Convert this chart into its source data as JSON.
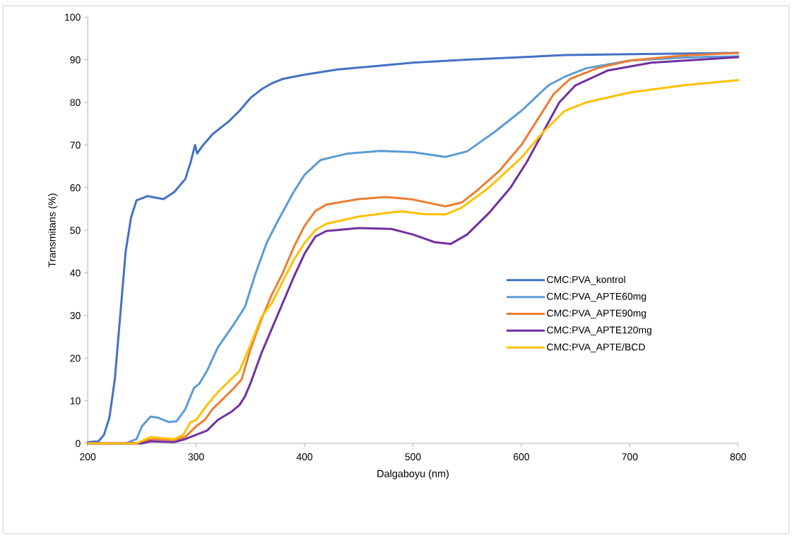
{
  "chart_data": {
    "type": "line",
    "xlabel": "Dalgaboyu (nm)",
    "ylabel": "Transmitans (%)",
    "xlim": [
      200,
      800
    ],
    "xticks": [
      200,
      300,
      400,
      500,
      600,
      700,
      800
    ],
    "ylim": [
      0,
      100
    ],
    "yticks": [
      0,
      10,
      20,
      30,
      40,
      50,
      60,
      70,
      80,
      90,
      100
    ],
    "grid": false,
    "legend": "right",
    "marker": "none",
    "line_style": "solid",
    "series": [
      {
        "name": "CMC:PVA_kontrol",
        "color": "#4472c4",
        "x": [
          200,
          210,
          215,
          220,
          225,
          230,
          235,
          240,
          245,
          255,
          270,
          280,
          290,
          295,
          299,
          301,
          305,
          315,
          330,
          340,
          350,
          360,
          370,
          380,
          400,
          430,
          470,
          500,
          550,
          600,
          640,
          700,
          800
        ],
        "values": [
          0.3,
          0.5,
          2,
          6,
          15,
          30,
          45,
          53,
          57,
          58,
          57.3,
          59,
          62,
          66,
          70,
          68,
          69.5,
          72.5,
          75.5,
          78,
          81,
          83,
          84.5,
          85.5,
          86.5,
          87.7,
          88.6,
          89.3,
          90,
          90.6,
          91.1,
          91.3,
          91.6
        ]
      },
      {
        "name": "CMC:PVA_APTE60mg",
        "color": "#5b9bd5",
        "x": [
          200,
          235,
          245,
          250,
          258,
          265,
          275,
          282,
          290,
          298,
          303,
          310,
          320,
          335,
          345,
          355,
          365,
          375,
          390,
          400,
          415,
          440,
          470,
          500,
          530,
          550,
          575,
          600,
          625,
          640,
          660,
          700,
          750,
          800
        ],
        "values": [
          0,
          0,
          1,
          4,
          6.3,
          6,
          5,
          5.2,
          8,
          13,
          14,
          17,
          22.5,
          28,
          32,
          40,
          47,
          52,
          59,
          63,
          66.5,
          68,
          68.6,
          68.3,
          67.2,
          68.5,
          73,
          78,
          84,
          86,
          88,
          89.8,
          90.5,
          90.8
        ]
      },
      {
        "name": "CMC:PVA_APTE90mg",
        "color": "#ed7d31",
        "x": [
          200,
          245,
          255,
          265,
          280,
          290,
          300,
          308,
          315,
          325,
          335,
          342,
          350,
          360,
          370,
          380,
          390,
          400,
          410,
          420,
          450,
          475,
          500,
          530,
          545,
          560,
          580,
          600,
          615,
          630,
          645,
          670,
          700,
          750,
          800
        ],
        "values": [
          0,
          0,
          0.8,
          1,
          0.8,
          1.5,
          4,
          5.5,
          8,
          10.5,
          13,
          15,
          22,
          29,
          35,
          40,
          46,
          51,
          54.5,
          56,
          57.3,
          57.8,
          57.2,
          55.6,
          56.5,
          59.5,
          64,
          70,
          76,
          82,
          85.5,
          88,
          89.8,
          91,
          91.6
        ]
      },
      {
        "name": "CMC:PVA_APTE120mg",
        "color": "#7030a0",
        "x": [
          200,
          250,
          258,
          280,
          290,
          300,
          310,
          320,
          333,
          340,
          345,
          350,
          360,
          370,
          380,
          390,
          400,
          410,
          420,
          450,
          480,
          500,
          520,
          535,
          550,
          570,
          590,
          605,
          620,
          635,
          650,
          680,
          720,
          800
        ],
        "values": [
          0,
          0,
          0.5,
          0.3,
          1,
          2,
          3,
          5.5,
          7.5,
          9,
          11,
          14,
          21,
          27,
          33,
          39,
          44.5,
          48.5,
          49.8,
          50.5,
          50.3,
          49,
          47.2,
          46.8,
          49,
          54,
          60,
          66,
          73,
          80,
          84,
          87.5,
          89.3,
          90.6
        ]
      },
      {
        "name": "CMC:PVA_APTE/BCD",
        "color": "#ffc000",
        "x": [
          200,
          245,
          258,
          270,
          280,
          288,
          295,
          300,
          310,
          320,
          330,
          340,
          350,
          360,
          370,
          380,
          390,
          400,
          410,
          420,
          450,
          480,
          490,
          510,
          530,
          545,
          570,
          600,
          620,
          640,
          660,
          700,
          750,
          800
        ],
        "values": [
          0,
          0,
          1.5,
          1.2,
          1,
          2,
          5,
          5.5,
          9,
          12,
          14.5,
          17,
          23,
          29.5,
          33,
          38,
          43,
          47,
          50,
          51.5,
          53.2,
          54.2,
          54.4,
          53.8,
          53.7,
          55.3,
          60,
          67,
          73,
          78,
          80,
          82.3,
          84,
          85.2
        ]
      }
    ]
  }
}
